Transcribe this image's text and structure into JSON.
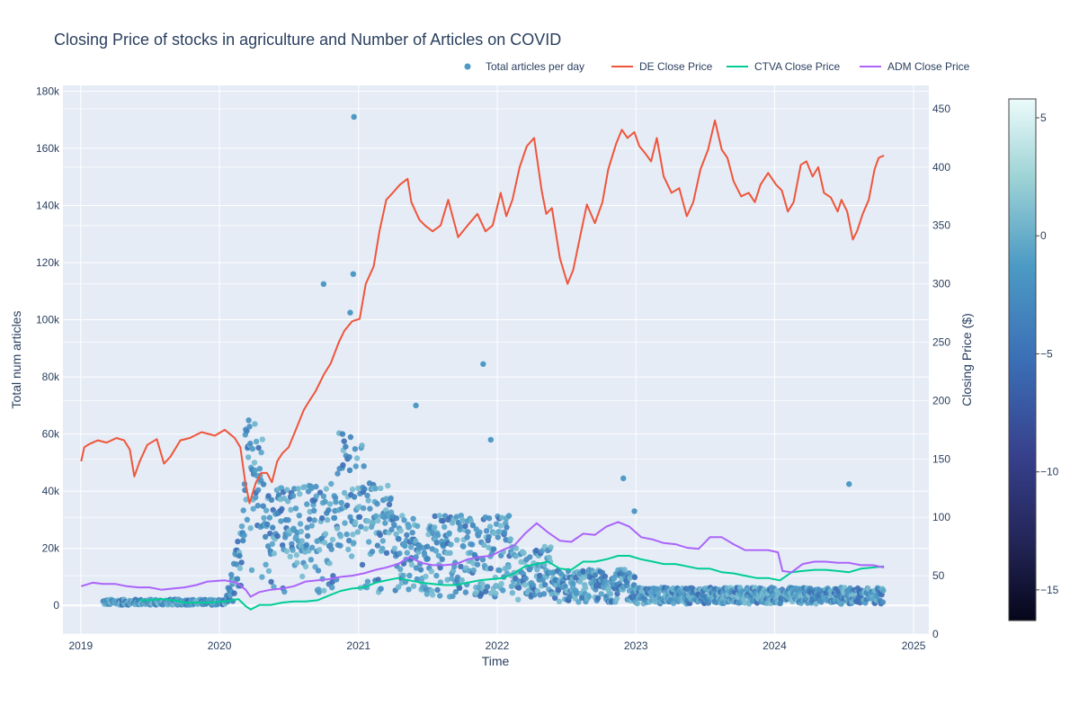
{
  "chart_data": {
    "type": "line+scatter",
    "title": "Closing Price of stocks in agriculture and Number of Articles on COVID",
    "xlabel": "Time",
    "ylabel_left": "Total num articles",
    "ylabel_right": "Closing Price ($)",
    "x_ticks": [
      "2019",
      "2020",
      "2021",
      "2022",
      "2023",
      "2024",
      "2025"
    ],
    "y_left_ticks": [
      0,
      20000,
      40000,
      60000,
      80000,
      100000,
      120000,
      140000,
      160000,
      180000
    ],
    "y_left_tick_labels": [
      "0",
      "20k",
      "40k",
      "60k",
      "80k",
      "100k",
      "120k",
      "140k",
      "160k",
      "180k"
    ],
    "y_left_range": [
      -10000,
      182000
    ],
    "y_right_ticks": [
      0,
      50,
      100,
      150,
      200,
      250,
      300,
      350,
      400,
      450
    ],
    "y_right_range": [
      0,
      470
    ],
    "x_range": [
      "2018-11-15",
      "2025-02-10"
    ],
    "grid": true,
    "legend_placement": "top-right",
    "legend": [
      "Total articles per day",
      "DE Close Price",
      "CTVA Close Price",
      "ADM Close Price"
    ],
    "colorbar": {
      "range": [
        -16.3,
        5.8
      ],
      "ticks": [
        5,
        0,
        -5,
        -10,
        -15
      ],
      "tick_labels": [
        "5",
        "0",
        "−5",
        "−10",
        "−15"
      ]
    },
    "series": [
      {
        "name": "DE Close Price",
        "color": "#EF553B",
        "axis": "right",
        "points": [
          [
            "2019-01-02",
            148
          ],
          [
            "2019-01-10",
            160
          ],
          [
            "2019-01-25",
            163
          ],
          [
            "2019-02-15",
            166
          ],
          [
            "2019-03-10",
            164
          ],
          [
            "2019-04-05",
            168
          ],
          [
            "2019-04-25",
            166
          ],
          [
            "2019-05-10",
            158
          ],
          [
            "2019-05-22",
            135
          ],
          [
            "2019-06-05",
            148
          ],
          [
            "2019-06-25",
            162
          ],
          [
            "2019-07-20",
            167
          ],
          [
            "2019-08-08",
            146
          ],
          [
            "2019-08-25",
            152
          ],
          [
            "2019-09-20",
            166
          ],
          [
            "2019-10-15",
            168
          ],
          [
            "2019-11-15",
            173
          ],
          [
            "2019-12-20",
            170
          ],
          [
            "2020-01-15",
            175
          ],
          [
            "2020-02-10",
            168
          ],
          [
            "2020-02-25",
            160
          ],
          [
            "2020-03-09",
            130
          ],
          [
            "2020-03-20",
            112
          ],
          [
            "2020-04-06",
            130
          ],
          [
            "2020-04-20",
            138
          ],
          [
            "2020-05-05",
            138
          ],
          [
            "2020-05-18",
            130
          ],
          [
            "2020-06-01",
            148
          ],
          [
            "2020-06-15",
            155
          ],
          [
            "2020-07-01",
            160
          ],
          [
            "2020-07-20",
            175
          ],
          [
            "2020-08-10",
            192
          ],
          [
            "2020-08-25",
            200
          ],
          [
            "2020-09-10",
            208
          ],
          [
            "2020-10-01",
            222
          ],
          [
            "2020-10-20",
            232
          ],
          [
            "2020-11-10",
            250
          ],
          [
            "2020-11-25",
            260
          ],
          [
            "2020-12-15",
            268
          ],
          [
            "2021-01-04",
            270
          ],
          [
            "2021-01-20",
            300
          ],
          [
            "2021-02-10",
            315
          ],
          [
            "2021-02-25",
            345
          ],
          [
            "2021-03-15",
            372
          ],
          [
            "2021-04-01",
            378
          ],
          [
            "2021-04-20",
            385
          ],
          [
            "2021-05-10",
            390
          ],
          [
            "2021-05-20",
            370
          ],
          [
            "2021-06-10",
            355
          ],
          [
            "2021-06-25",
            350
          ],
          [
            "2021-07-15",
            345
          ],
          [
            "2021-08-05",
            350
          ],
          [
            "2021-08-25",
            372
          ],
          [
            "2021-09-20",
            340
          ],
          [
            "2021-10-15",
            350
          ],
          [
            "2021-11-10",
            360
          ],
          [
            "2021-12-01",
            345
          ],
          [
            "2021-12-20",
            350
          ],
          [
            "2022-01-10",
            378
          ],
          [
            "2022-01-25",
            358
          ],
          [
            "2022-02-10",
            372
          ],
          [
            "2022-03-01",
            400
          ],
          [
            "2022-03-20",
            418
          ],
          [
            "2022-04-08",
            425
          ],
          [
            "2022-04-28",
            380
          ],
          [
            "2022-05-10",
            360
          ],
          [
            "2022-05-25",
            365
          ],
          [
            "2022-06-15",
            322
          ],
          [
            "2022-07-05",
            300
          ],
          [
            "2022-07-20",
            312
          ],
          [
            "2022-08-10",
            345
          ],
          [
            "2022-08-25",
            368
          ],
          [
            "2022-09-15",
            352
          ],
          [
            "2022-10-05",
            370
          ],
          [
            "2022-10-20",
            398
          ],
          [
            "2022-11-10",
            420
          ],
          [
            "2022-11-25",
            432
          ],
          [
            "2022-12-10",
            425
          ],
          [
            "2022-12-28",
            430
          ],
          [
            "2023-01-10",
            418
          ],
          [
            "2023-01-25",
            412
          ],
          [
            "2023-02-10",
            405
          ],
          [
            "2023-02-25",
            425
          ],
          [
            "2023-03-15",
            392
          ],
          [
            "2023-04-05",
            378
          ],
          [
            "2023-04-25",
            382
          ],
          [
            "2023-05-15",
            358
          ],
          [
            "2023-06-01",
            370
          ],
          [
            "2023-06-20",
            398
          ],
          [
            "2023-07-10",
            415
          ],
          [
            "2023-07-28",
            440
          ],
          [
            "2023-08-15",
            415
          ],
          [
            "2023-08-30",
            408
          ],
          [
            "2023-09-15",
            388
          ],
          [
            "2023-10-05",
            375
          ],
          [
            "2023-10-25",
            378
          ],
          [
            "2023-11-10",
            370
          ],
          [
            "2023-11-25",
            385
          ],
          [
            "2023-12-15",
            395
          ],
          [
            "2024-01-05",
            385
          ],
          [
            "2024-01-20",
            380
          ],
          [
            "2024-02-05",
            362
          ],
          [
            "2024-02-20",
            370
          ],
          [
            "2024-03-10",
            402
          ],
          [
            "2024-03-25",
            405
          ],
          [
            "2024-04-10",
            392
          ],
          [
            "2024-04-25",
            400
          ],
          [
            "2024-05-10",
            378
          ],
          [
            "2024-05-28",
            374
          ],
          [
            "2024-06-15",
            362
          ],
          [
            "2024-06-25",
            372
          ],
          [
            "2024-07-10",
            362
          ],
          [
            "2024-07-25",
            338
          ],
          [
            "2024-08-05",
            345
          ],
          [
            "2024-08-20",
            360
          ],
          [
            "2024-09-05",
            372
          ],
          [
            "2024-09-20",
            398
          ],
          [
            "2024-10-01",
            408
          ],
          [
            "2024-10-15",
            410
          ]
        ]
      },
      {
        "name": "CTVA Close Price",
        "color": "#00CC96",
        "axis": "right",
        "points": [
          [
            "2019-06-03",
            29
          ],
          [
            "2019-07-01",
            29
          ],
          [
            "2019-08-01",
            30
          ],
          [
            "2019-09-01",
            29
          ],
          [
            "2019-10-01",
            27
          ],
          [
            "2019-11-01",
            27
          ],
          [
            "2019-12-01",
            27
          ],
          [
            "2020-01-15",
            28
          ],
          [
            "2020-02-20",
            30
          ],
          [
            "2020-03-10",
            24
          ],
          [
            "2020-03-23",
            21
          ],
          [
            "2020-04-15",
            25
          ],
          [
            "2020-05-15",
            25
          ],
          [
            "2020-06-15",
            27
          ],
          [
            "2020-07-15",
            28
          ],
          [
            "2020-08-15",
            28
          ],
          [
            "2020-09-15",
            29
          ],
          [
            "2020-10-15",
            33
          ],
          [
            "2020-11-15",
            37
          ],
          [
            "2020-12-15",
            39
          ],
          [
            "2021-01-15",
            40
          ],
          [
            "2021-02-15",
            44
          ],
          [
            "2021-03-15",
            46
          ],
          [
            "2021-04-15",
            48
          ],
          [
            "2021-05-15",
            46
          ],
          [
            "2021-06-15",
            44
          ],
          [
            "2021-07-15",
            43
          ],
          [
            "2021-08-15",
            42
          ],
          [
            "2021-09-15",
            42
          ],
          [
            "2021-10-15",
            44
          ],
          [
            "2021-11-15",
            46
          ],
          [
            "2021-12-15",
            47
          ],
          [
            "2022-01-15",
            48
          ],
          [
            "2022-02-15",
            52
          ],
          [
            "2022-03-15",
            58
          ],
          [
            "2022-04-15",
            60
          ],
          [
            "2022-05-15",
            62
          ],
          [
            "2022-06-15",
            56
          ],
          [
            "2022-07-15",
            55
          ],
          [
            "2022-08-15",
            62
          ],
          [
            "2022-09-15",
            62
          ],
          [
            "2022-10-15",
            64
          ],
          [
            "2022-11-15",
            67
          ],
          [
            "2022-12-15",
            67
          ],
          [
            "2023-01-15",
            64
          ],
          [
            "2023-02-15",
            62
          ],
          [
            "2023-03-15",
            60
          ],
          [
            "2023-04-15",
            60
          ],
          [
            "2023-05-15",
            58
          ],
          [
            "2023-06-15",
            56
          ],
          [
            "2023-07-15",
            56
          ],
          [
            "2023-08-15",
            53
          ],
          [
            "2023-09-15",
            52
          ],
          [
            "2023-10-15",
            50
          ],
          [
            "2023-11-15",
            48
          ],
          [
            "2023-12-15",
            48
          ],
          [
            "2024-01-15",
            46
          ],
          [
            "2024-02-15",
            53
          ],
          [
            "2024-03-15",
            54
          ],
          [
            "2024-04-15",
            55
          ],
          [
            "2024-05-15",
            55
          ],
          [
            "2024-06-15",
            54
          ],
          [
            "2024-07-15",
            53
          ],
          [
            "2024-08-15",
            56
          ],
          [
            "2024-09-15",
            57
          ],
          [
            "2024-10-15",
            58
          ]
        ]
      },
      {
        "name": "ADM Close Price",
        "color": "#AB63FA",
        "axis": "right",
        "points": [
          [
            "2019-01-02",
            41
          ],
          [
            "2019-02-01",
            44
          ],
          [
            "2019-03-01",
            43
          ],
          [
            "2019-04-01",
            43
          ],
          [
            "2019-05-01",
            41
          ],
          [
            "2019-06-01",
            40
          ],
          [
            "2019-07-01",
            40
          ],
          [
            "2019-08-01",
            38
          ],
          [
            "2019-09-01",
            39
          ],
          [
            "2019-10-01",
            40
          ],
          [
            "2019-11-01",
            42
          ],
          [
            "2019-12-01",
            45
          ],
          [
            "2020-01-15",
            46
          ],
          [
            "2020-02-15",
            44
          ],
          [
            "2020-03-10",
            38
          ],
          [
            "2020-03-23",
            32
          ],
          [
            "2020-04-15",
            36
          ],
          [
            "2020-05-15",
            38
          ],
          [
            "2020-06-15",
            39
          ],
          [
            "2020-07-15",
            41
          ],
          [
            "2020-08-15",
            45
          ],
          [
            "2020-09-15",
            46
          ],
          [
            "2020-10-15",
            47
          ],
          [
            "2020-11-15",
            49
          ],
          [
            "2020-12-15",
            50
          ],
          [
            "2021-01-15",
            52
          ],
          [
            "2021-02-15",
            55
          ],
          [
            "2021-03-15",
            57
          ],
          [
            "2021-04-15",
            60
          ],
          [
            "2021-05-15",
            66
          ],
          [
            "2021-06-15",
            61
          ],
          [
            "2021-07-15",
            59
          ],
          [
            "2021-08-15",
            59
          ],
          [
            "2021-09-15",
            60
          ],
          [
            "2021-10-15",
            64
          ],
          [
            "2021-11-15",
            66
          ],
          [
            "2021-12-15",
            67
          ],
          [
            "2022-01-15",
            72
          ],
          [
            "2022-02-15",
            76
          ],
          [
            "2022-03-15",
            86
          ],
          [
            "2022-04-15",
            95
          ],
          [
            "2022-05-15",
            87
          ],
          [
            "2022-06-15",
            80
          ],
          [
            "2022-07-15",
            79
          ],
          [
            "2022-08-15",
            86
          ],
          [
            "2022-09-15",
            85
          ],
          [
            "2022-10-15",
            92
          ],
          [
            "2022-11-15",
            96
          ],
          [
            "2022-12-15",
            92
          ],
          [
            "2023-01-15",
            83
          ],
          [
            "2023-02-15",
            81
          ],
          [
            "2023-03-15",
            78
          ],
          [
            "2023-04-15",
            77
          ],
          [
            "2023-05-15",
            74
          ],
          [
            "2023-06-15",
            73
          ],
          [
            "2023-07-15",
            83
          ],
          [
            "2023-08-15",
            83
          ],
          [
            "2023-09-15",
            77
          ],
          [
            "2023-10-15",
            72
          ],
          [
            "2023-11-15",
            72
          ],
          [
            "2023-12-15",
            72
          ],
          [
            "2024-01-10",
            70
          ],
          [
            "2024-01-22",
            54
          ],
          [
            "2024-02-15",
            53
          ],
          [
            "2024-03-15",
            60
          ],
          [
            "2024-04-15",
            62
          ],
          [
            "2024-05-15",
            62
          ],
          [
            "2024-06-15",
            61
          ],
          [
            "2024-07-15",
            61
          ],
          [
            "2024-08-15",
            59
          ],
          [
            "2024-09-15",
            59
          ],
          [
            "2024-10-15",
            57
          ]
        ]
      },
      {
        "name": "Total articles per day",
        "type": "scatter",
        "axis": "left",
        "note_seed": 7,
        "outliers": [
          [
            "2020-12-20",
            171000
          ],
          [
            "2020-12-18",
            116000
          ],
          [
            "2020-10-01",
            112500
          ],
          [
            "2020-12-10",
            102500
          ],
          [
            "2021-11-25",
            84500
          ],
          [
            "2021-06-01",
            70000
          ],
          [
            "2022-11-29",
            44500
          ],
          [
            "2024-07-15",
            42500
          ],
          [
            "2021-12-15",
            58000
          ],
          [
            "2022-12-28",
            33000
          ]
        ]
      }
    ]
  }
}
